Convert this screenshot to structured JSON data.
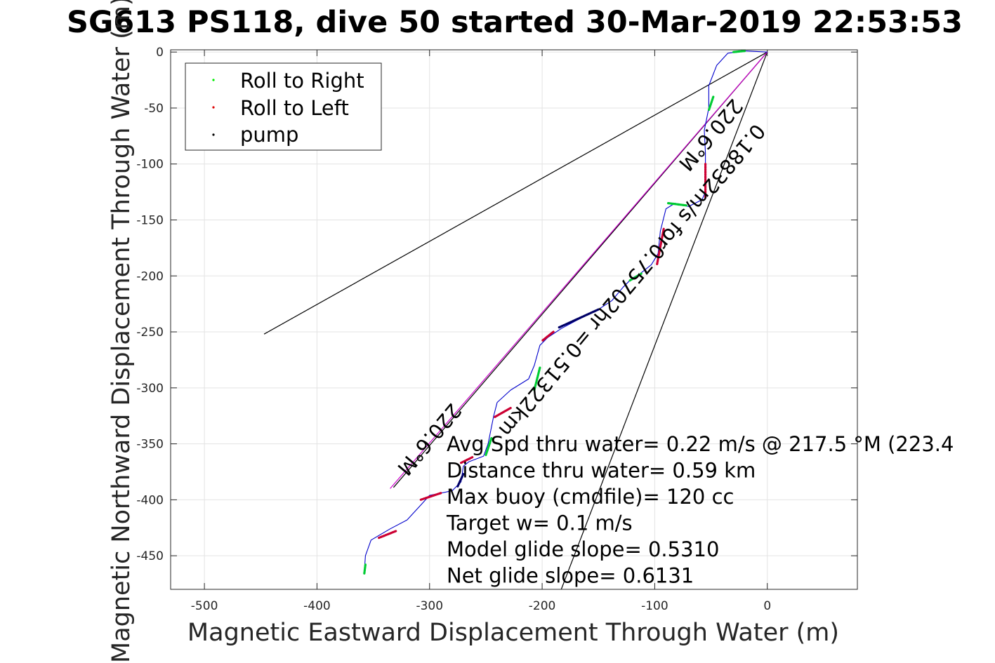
{
  "chart_data": {
    "type": "scatter",
    "title": "SG613 PS118, dive 50 started 30-Mar-2019 22:53:53",
    "xlabel": "Magnetic Eastward Displacement Through Water (m)",
    "ylabel": "Magnetic Northward Displacement Through Water (m)",
    "xlim": [
      -530,
      80
    ],
    "ylim": [
      -480,
      2
    ],
    "xticks": [
      -500,
      -400,
      -300,
      -200,
      -100,
      0
    ],
    "yticks": [
      0,
      -50,
      -100,
      -150,
      -200,
      -250,
      -300,
      -350,
      -400,
      -450
    ],
    "grid": true,
    "legend_position": "top-left",
    "legend": [
      {
        "label": "Roll to Right",
        "color": "#00ee00"
      },
      {
        "label": "Roll to Left",
        "color": "#dd0000"
      },
      {
        "label": "pump",
        "color": "#000000"
      }
    ],
    "track": {
      "color": "#0000cc",
      "points": [
        [
          0,
          0
        ],
        [
          -20,
          1
        ],
        [
          -35,
          -1
        ],
        [
          -45,
          -12
        ],
        [
          -52,
          -30
        ],
        [
          -52,
          -50
        ],
        [
          -56,
          -70
        ],
        [
          -55,
          -90
        ],
        [
          -55,
          -110
        ],
        [
          -55,
          -125
        ],
        [
          -58,
          -132
        ],
        [
          -70,
          -138
        ],
        [
          -82,
          -135
        ],
        [
          -90,
          -140
        ],
        [
          -95,
          -160
        ],
        [
          -97,
          -180
        ],
        [
          -103,
          -190
        ],
        [
          -113,
          -198
        ],
        [
          -120,
          -202
        ],
        [
          -128,
          -210
        ],
        [
          -138,
          -222
        ],
        [
          -150,
          -230
        ],
        [
          -170,
          -240
        ],
        [
          -183,
          -247
        ],
        [
          -195,
          -255
        ],
        [
          -202,
          -262
        ],
        [
          -207,
          -280
        ],
        [
          -212,
          -292
        ],
        [
          -228,
          -302
        ],
        [
          -240,
          -313
        ],
        [
          -243,
          -325
        ],
        [
          -248,
          -350
        ],
        [
          -252,
          -361
        ],
        [
          -265,
          -366
        ],
        [
          -270,
          -370
        ],
        [
          -272,
          -384
        ],
        [
          -280,
          -392
        ],
        [
          -300,
          -396
        ],
        [
          -308,
          -405
        ],
        [
          -320,
          -418
        ],
        [
          -335,
          -426
        ],
        [
          -352,
          -436
        ],
        [
          -357,
          -450
        ],
        [
          -358,
          -465
        ]
      ]
    },
    "segments": [
      {
        "type": "roll-right",
        "color": "#00cc33",
        "points": [
          [
            -30,
            0
          ],
          [
            -20,
            1
          ]
        ]
      },
      {
        "type": "roll-right",
        "color": "#00cc33",
        "points": [
          [
            -48,
            -40
          ],
          [
            -52,
            -52
          ]
        ]
      },
      {
        "type": "roll-left",
        "color": "#cc0033",
        "points": [
          [
            -55,
            -100
          ],
          [
            -55,
            -130
          ]
        ]
      },
      {
        "type": "roll-right",
        "color": "#00cc33",
        "points": [
          [
            -72,
            -137
          ],
          [
            -88,
            -135
          ]
        ]
      },
      {
        "type": "roll-left",
        "color": "#cc0033",
        "points": [
          [
            -92,
            -158
          ],
          [
            -98,
            -190
          ]
        ]
      },
      {
        "type": "roll-right",
        "color": "#00cc33",
        "points": [
          [
            -112,
            -198
          ],
          [
            -122,
            -204
          ]
        ]
      },
      {
        "type": "pump",
        "color": "#000066",
        "points": [
          [
            -150,
            -230
          ],
          [
            -185,
            -246
          ]
        ]
      },
      {
        "type": "roll-left",
        "color": "#cc0033",
        "points": [
          [
            -190,
            -250
          ],
          [
            -200,
            -258
          ]
        ]
      },
      {
        "type": "roll-right",
        "color": "#00cc33",
        "points": [
          [
            -202,
            -282
          ],
          [
            -207,
            -302
          ]
        ]
      },
      {
        "type": "roll-left",
        "color": "#cc0033",
        "points": [
          [
            -228,
            -318
          ],
          [
            -242,
            -326
          ]
        ]
      },
      {
        "type": "roll-right",
        "color": "#00cc33",
        "points": [
          [
            -245,
            -345
          ],
          [
            -250,
            -360
          ]
        ]
      },
      {
        "type": "roll-left",
        "color": "#cc0033",
        "points": [
          [
            -262,
            -362
          ],
          [
            -272,
            -367
          ]
        ]
      },
      {
        "type": "pump",
        "color": "#000066",
        "points": [
          [
            -270,
            -377
          ],
          [
            -275,
            -388
          ]
        ]
      },
      {
        "type": "roll-left",
        "color": "#cc0033",
        "points": [
          [
            -290,
            -394
          ],
          [
            -308,
            -400
          ]
        ]
      },
      {
        "type": "roll-left",
        "color": "#cc0033",
        "points": [
          [
            -330,
            -428
          ],
          [
            -345,
            -434
          ]
        ]
      },
      {
        "type": "roll-right",
        "color": "#00cc33",
        "points": [
          [
            -357,
            -458
          ],
          [
            -358,
            -466
          ]
        ]
      }
    ],
    "lines": [
      {
        "color": "#000000",
        "points": [
          [
            0,
            0
          ],
          [
            -447,
            -252
          ]
        ]
      },
      {
        "color": "#000000",
        "points": [
          [
            0,
            0
          ],
          [
            -183,
            -480
          ]
        ]
      },
      {
        "color": "#000000",
        "points": [
          [
            0,
            0
          ],
          [
            -332,
            -389
          ]
        ]
      },
      {
        "color": "#cc00cc",
        "points": [
          [
            0,
            0
          ],
          [
            -335,
            -390
          ]
        ]
      }
    ],
    "annotations": {
      "rotated": [
        {
          "text": "220.6°M",
          "x": -55,
          "y": -70,
          "angle": 130
        },
        {
          "text": "0.18832m/s for0.75702hr =0.51322km",
          "x": -125,
          "y": -200,
          "angle": 130
        },
        {
          "text": "220.6°M",
          "x": -305,
          "y": -342,
          "angle": 130
        }
      ],
      "stats": [
        "Avg Spd thru water=  0.22 m/s @ 217.5 °M (223.4",
        "Distance thru water=  0.59 km",
        "Max buoy (cmdfile)= 120 cc",
        "Target w= 0.1 m/s",
        "Model glide slope= 0.5310",
        "Net glide slope= 0.6131"
      ]
    }
  }
}
